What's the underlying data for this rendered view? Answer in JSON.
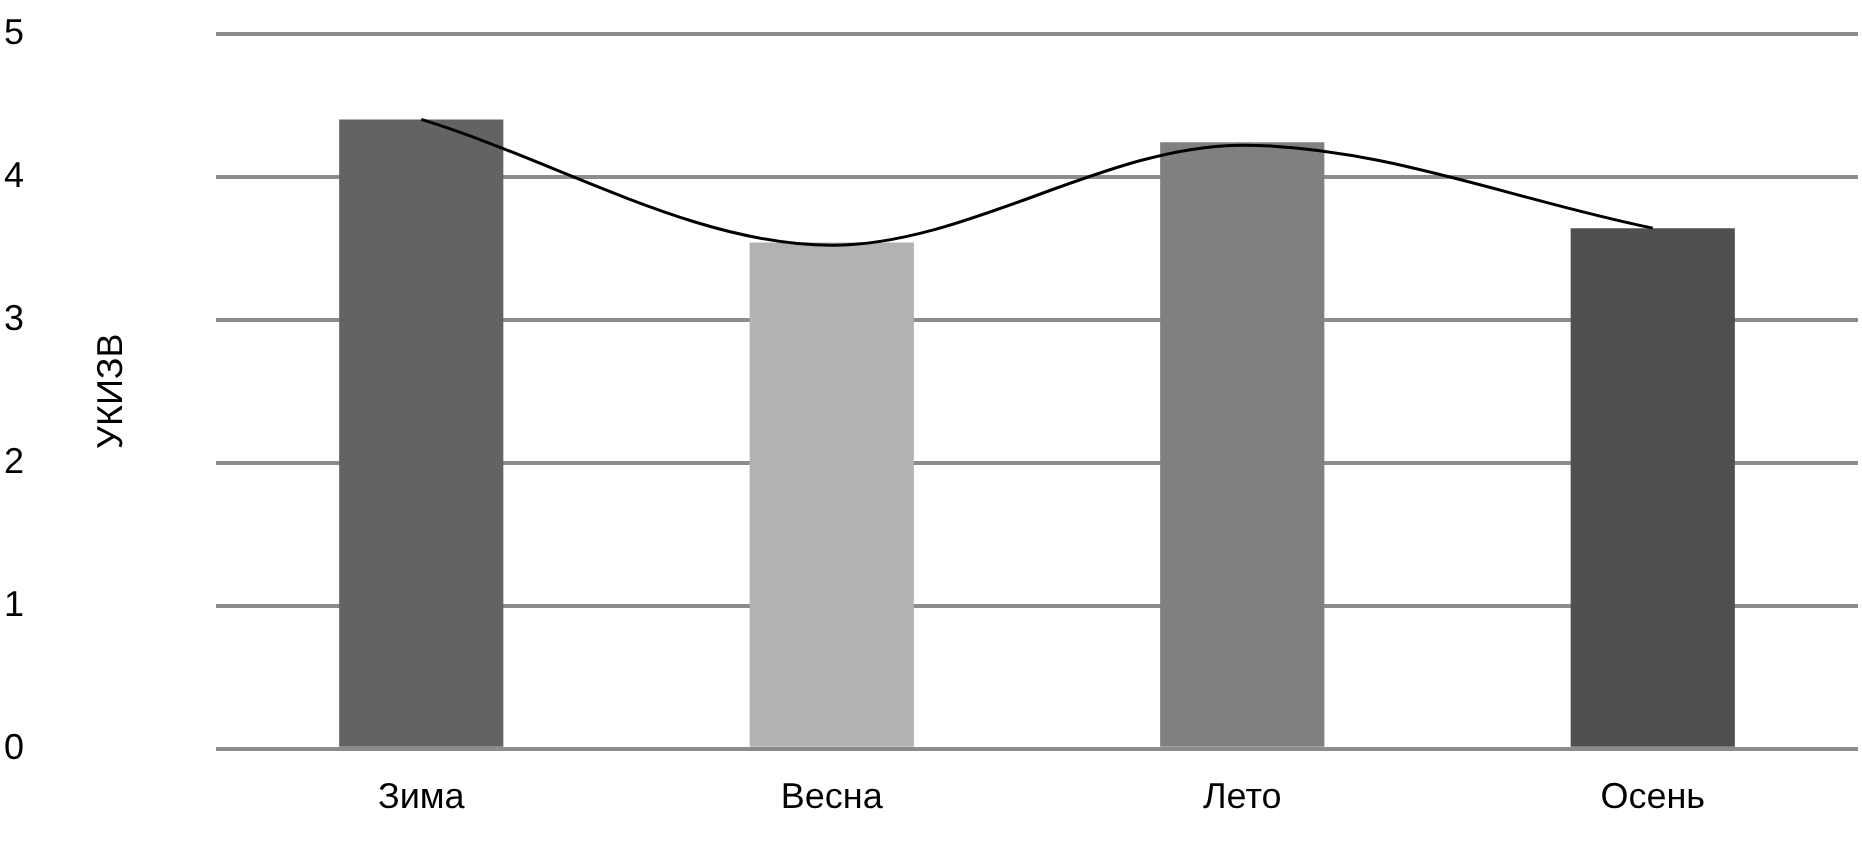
{
  "chart_data": {
    "type": "bar",
    "ylabel": "УКИЗВ",
    "categories": [
      "Зима",
      "Весна",
      "Лето",
      "Осень"
    ],
    "series": [
      {
        "colors": [
          "#636363",
          "#b2b2b2",
          "#808080",
          "#505050"
        ],
        "values": [
          4.4,
          3.54,
          4.24,
          3.64
        ]
      },
      {
        "type": "line",
        "color": "#000000",
        "values": [
          4.4,
          3.52,
          4.22,
          3.64
        ],
        "marker": "none"
      }
    ],
    "ylim": [
      0,
      5
    ],
    "yticks": [
      0,
      1,
      2,
      3,
      4,
      5
    ],
    "grid": "y",
    "legend": false
  }
}
